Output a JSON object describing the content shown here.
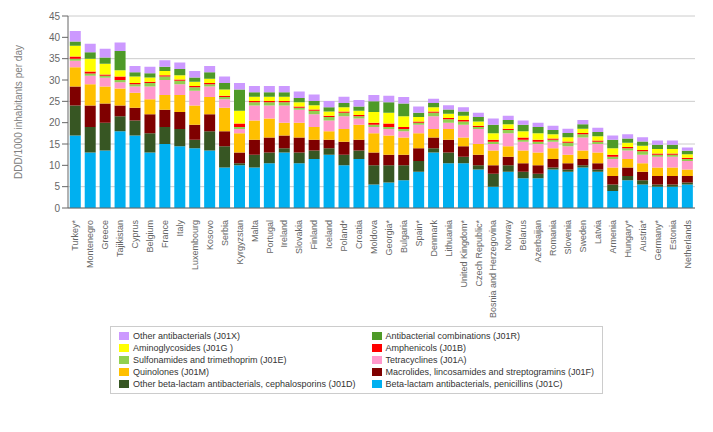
{
  "chart_data": {
    "type": "bar",
    "stacked": true,
    "grid": true,
    "legend": "bottom",
    "ylabel": "DDD/1000 inhabitants per day",
    "ylim": [
      0,
      45
    ],
    "yticks": [
      0,
      5,
      10,
      15,
      20,
      25,
      30,
      35,
      40,
      45
    ],
    "categories": [
      "Turkey*",
      "Montenegro",
      "Greece",
      "Tajikistan",
      "Cyprus",
      "Belgium",
      "France",
      "Italy",
      "Luxembourg",
      "Kosovo",
      "Serbia",
      "Kyrgyzstan",
      "Malta",
      "Portugal",
      "Ireland",
      "Slovakia",
      "Finland",
      "Iceland",
      "Poland*",
      "Croatia",
      "Moldova",
      "Georgia*",
      "Bulgaria",
      "Spain*",
      "Denmark",
      "Lithuania",
      "United Kingdom*",
      "Czech Republic*",
      "Bosnia and Herzegovina",
      "Norway",
      "Belarus",
      "Azerbaijan",
      "Romania",
      "Slovenia",
      "Sweden",
      "Latvia",
      "Armenia",
      "Hungary*",
      "Austria*",
      "Germany*",
      "Estonia",
      "Netherlands"
    ],
    "series": [
      {
        "name": "Beta-lactam antibacterials, penicillins (J01C)",
        "color": "#00B0F0",
        "values": [
          17.0,
          13.0,
          13.5,
          18.0,
          17.0,
          13.0,
          15.0,
          14.5,
          14.0,
          13.5,
          9.5,
          10.0,
          9.5,
          10.5,
          13.0,
          10.5,
          11.5,
          12.5,
          10.0,
          11.5,
          5.5,
          6.0,
          6.5,
          8.5,
          13.0,
          10.5,
          10.5,
          9.0,
          5.0,
          8.5,
          7.0,
          7.0,
          9.0,
          8.5,
          9.5,
          8.5,
          4.0,
          6.5,
          5.5,
          5.0,
          5.0,
          5.5
        ]
      },
      {
        "name": "Other beta-lactam antibacterials, cephalosporins (J01D)",
        "color": "#375623",
        "values": [
          7.0,
          6.0,
          6.5,
          3.5,
          3.5,
          4.5,
          4.0,
          4.0,
          2.0,
          4.5,
          5.0,
          0.5,
          3.0,
          2.5,
          1.0,
          2.5,
          2.0,
          1.5,
          2.5,
          2.0,
          4.5,
          4.0,
          3.5,
          2.5,
          1.0,
          2.5,
          1.5,
          1.0,
          3.0,
          1.5,
          1.5,
          1.0,
          0.5,
          0.5,
          0.5,
          0.5,
          1.5,
          1.0,
          1.0,
          0.5,
          0.5,
          0.5
        ]
      },
      {
        "name": "Macrolides, lincosamides and streptogramins (J01F)",
        "color": "#7F0000",
        "values": [
          4.5,
          5.0,
          4.5,
          2.5,
          3.0,
          4.5,
          4.0,
          4.0,
          3.5,
          4.0,
          3.5,
          2.5,
          3.5,
          3.5,
          3.0,
          3.5,
          2.5,
          2.0,
          3.0,
          2.5,
          3.0,
          2.5,
          2.5,
          3.0,
          2.5,
          3.0,
          2.5,
          2.5,
          2.0,
          2.0,
          2.0,
          2.0,
          2.0,
          1.5,
          1.5,
          1.5,
          2.0,
          2.0,
          2.0,
          2.0,
          2.0,
          1.5
        ]
      },
      {
        "name": "Quinolones (J01M)",
        "color": "#FFC000",
        "values": [
          4.5,
          5.0,
          4.0,
          4.0,
          3.5,
          3.5,
          3.5,
          4.0,
          4.5,
          4.0,
          5.5,
          4.5,
          4.5,
          4.5,
          3.0,
          3.5,
          3.0,
          2.0,
          3.0,
          3.5,
          4.5,
          4.5,
          4.0,
          3.5,
          2.0,
          2.5,
          2.0,
          2.5,
          3.5,
          2.5,
          3.0,
          3.0,
          2.5,
          2.0,
          2.0,
          2.5,
          2.0,
          2.0,
          2.0,
          2.0,
          2.0,
          1.5
        ]
      },
      {
        "name": "Tetracyclines (J01A)",
        "color": "#FF99CC",
        "values": [
          1.5,
          2.0,
          2.0,
          1.5,
          1.5,
          3.0,
          3.5,
          2.5,
          3.5,
          2.5,
          2.0,
          1.0,
          3.5,
          3.0,
          4.0,
          3.0,
          3.0,
          2.5,
          3.0,
          1.5,
          1.5,
          1.5,
          1.5,
          2.0,
          3.0,
          1.5,
          3.0,
          3.5,
          1.5,
          3.0,
          2.0,
          2.0,
          1.5,
          2.0,
          3.0,
          2.0,
          2.0,
          2.0,
          2.0,
          2.5,
          2.5,
          2.0
        ]
      },
      {
        "name": "Sulfonamides and trimethoprim (J01E)",
        "color": "#92D050",
        "values": [
          0.5,
          0.5,
          0.5,
          0.5,
          0.5,
          0.8,
          0.8,
          0.8,
          0.8,
          0.5,
          0.5,
          0.5,
          0.8,
          0.8,
          0.8,
          0.5,
          0.8,
          0.8,
          0.8,
          0.5,
          0.5,
          0.5,
          0.5,
          0.5,
          0.8,
          0.8,
          0.8,
          0.5,
          0.5,
          0.8,
          0.5,
          0.5,
          0.5,
          0.8,
          0.8,
          0.5,
          0.5,
          0.5,
          0.8,
          0.5,
          0.5,
          0.5
        ]
      },
      {
        "name": "Amphenicols (J01B)",
        "color": "#FF0000",
        "values": [
          0.5,
          0.5,
          0.3,
          0.8,
          0.3,
          0.3,
          0.3,
          0.3,
          0.3,
          0.3,
          0.3,
          0.8,
          0.3,
          0.3,
          0.3,
          0.3,
          0.3,
          0.3,
          0.3,
          0.3,
          0.5,
          0.8,
          0.5,
          0.3,
          0.3,
          0.3,
          0.3,
          0.3,
          0.5,
          0.3,
          0.5,
          0.5,
          0.3,
          0.3,
          0.3,
          0.3,
          0.5,
          0.3,
          0.3,
          0.3,
          0.3,
          0.3
        ]
      },
      {
        "name": "Aminoglycosides (J01G )",
        "color": "#FFFF00",
        "values": [
          2.5,
          3.0,
          2.5,
          1.5,
          1.5,
          1.0,
          1.0,
          1.0,
          1.0,
          1.0,
          1.5,
          3.0,
          1.0,
          1.0,
          1.0,
          1.0,
          1.0,
          1.0,
          1.0,
          1.0,
          2.5,
          2.5,
          2.5,
          1.0,
          1.0,
          1.0,
          1.0,
          1.0,
          1.5,
          1.0,
          1.5,
          1.5,
          1.0,
          1.0,
          1.0,
          1.0,
          1.5,
          1.0,
          1.0,
          1.0,
          1.0,
          0.8
        ]
      },
      {
        "name": "Antibacterial combinations (J01R)",
        "color": "#4E9A28",
        "values": [
          1.0,
          1.5,
          1.5,
          4.5,
          1.0,
          1.0,
          1.0,
          1.5,
          1.0,
          1.5,
          1.5,
          5.0,
          1.0,
          1.0,
          1.0,
          1.0,
          1.0,
          1.0,
          1.0,
          1.0,
          2.5,
          2.5,
          3.0,
          1.0,
          1.0,
          1.0,
          1.0,
          1.0,
          2.0,
          1.0,
          1.5,
          1.5,
          1.0,
          1.0,
          1.0,
          1.0,
          2.0,
          1.0,
          1.0,
          1.0,
          1.0,
          0.8
        ]
      },
      {
        "name": "Other antibacterials (J01X)",
        "color": "#CC99FF",
        "values": [
          2.5,
          2.0,
          2.0,
          2.0,
          1.5,
          1.5,
          1.5,
          1.5,
          1.5,
          1.5,
          1.5,
          1.5,
          1.5,
          1.5,
          1.5,
          1.5,
          1.5,
          1.5,
          1.5,
          1.5,
          1.5,
          1.5,
          1.5,
          1.5,
          1.0,
          1.0,
          1.0,
          1.0,
          1.5,
          1.0,
          1.0,
          1.0,
          1.0,
          1.0,
          1.0,
          1.0,
          1.0,
          1.0,
          1.0,
          1.0,
          1.0,
          0.8
        ]
      }
    ]
  }
}
